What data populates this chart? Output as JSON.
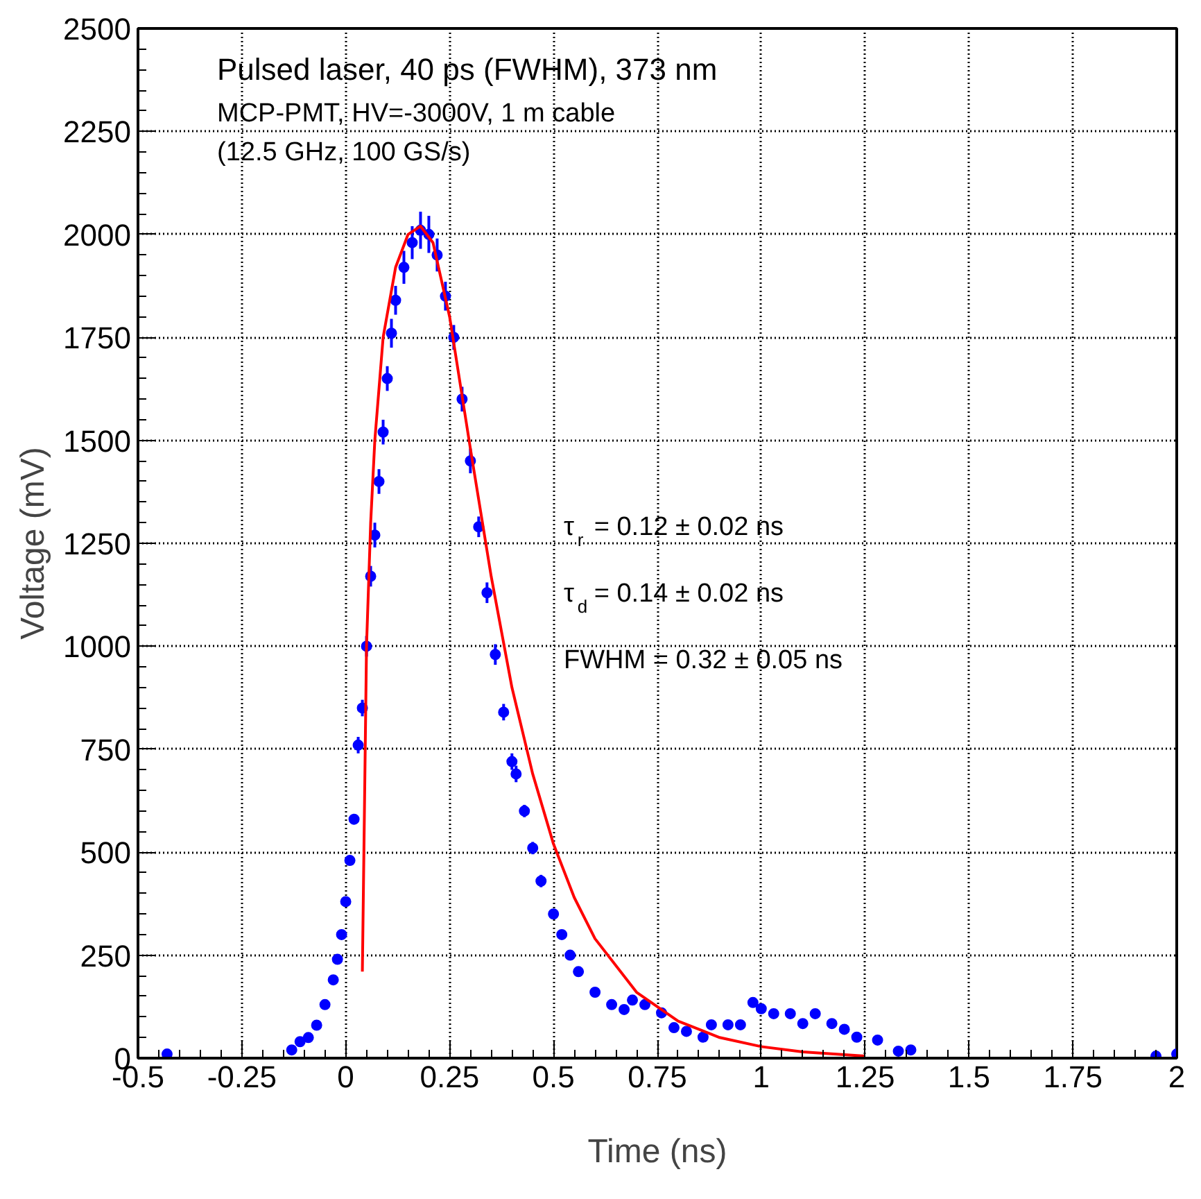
{
  "chart_data": {
    "type": "scatter",
    "title": "Pulsed laser, 40 ps (FWHM), 373 nm",
    "subtitle": "MCP-PMT, HV=-3000V, 1 m cable",
    "xlabel": "Time (ns)",
    "ylabel": "Voltage (mV)",
    "annotations": [
      "(12.5 GHz, 100 GS/s)",
      "τ$_{r}$ = 0.12 ± 0.02 ns",
      "τ$_{d}$ = 0.14 ± 0.02 ns",
      "FWHM = 0.32 ± 0.05 ns"
    ],
    "xlim": [
      -0.5,
      2
    ],
    "ylim": [
      0,
      2500
    ],
    "xticks": [
      -0.5,
      -0.25,
      0,
      0.25,
      0.5,
      0.75,
      1,
      1.25,
      1.5,
      1.75,
      2
    ],
    "yticks": [
      0,
      250,
      500,
      750,
      1000,
      1250,
      1500,
      1750,
      2000,
      2250,
      2500
    ],
    "grid": true,
    "marker": "circle",
    "series": [
      {
        "color": "#0000ff",
        "x": [
          -0.43,
          -0.13,
          -0.11,
          -0.09,
          -0.07,
          -0.05,
          -0.03,
          -0.02,
          -0.01,
          0.0,
          0.01,
          0.02,
          0.03,
          0.04,
          0.05,
          0.06,
          0.07,
          0.08,
          0.09,
          0.1,
          0.11,
          0.12,
          0.14,
          0.16,
          0.18,
          0.2,
          0.22,
          0.24,
          0.26,
          0.28,
          0.3,
          0.32,
          0.34,
          0.36,
          0.38,
          0.4,
          0.41,
          0.43,
          0.45,
          0.47,
          0.5,
          0.52,
          0.54,
          0.56,
          0.6,
          0.64,
          0.67,
          0.69,
          0.72,
          0.76,
          0.79,
          0.82,
          0.86,
          0.88,
          0.92,
          0.95,
          0.98,
          1.0,
          1.03,
          1.07,
          1.1,
          1.13,
          1.17,
          1.2,
          1.23,
          1.28,
          1.33,
          1.36,
          1.95,
          2.0
        ],
        "values": [
          10,
          20,
          40,
          50,
          80,
          130,
          190,
          240,
          300,
          380,
          480,
          580,
          760,
          850,
          1000,
          1170,
          1270,
          1400,
          1520,
          1650,
          1760,
          1840,
          1920,
          1980,
          2010,
          2000,
          1950,
          1850,
          1750,
          1600,
          1450,
          1290,
          1130,
          980,
          840,
          720,
          690,
          600,
          510,
          430,
          350,
          300,
          250,
          210,
          160,
          130,
          118,
          141,
          130,
          110,
          74,
          65,
          51,
          81,
          81,
          81,
          135,
          120,
          108,
          108,
          84,
          108,
          84,
          70,
          51,
          44,
          17,
          20,
          5,
          10
        ],
        "errors": [
          null,
          null,
          null,
          null,
          null,
          null,
          null,
          null,
          null,
          null,
          null,
          null,
          20,
          20,
          25,
          25,
          30,
          30,
          30,
          30,
          35,
          35,
          40,
          40,
          45,
          45,
          40,
          35,
          30,
          30,
          30,
          25,
          25,
          25,
          20,
          20,
          20,
          15,
          15,
          15,
          null,
          null,
          null,
          null,
          null,
          null,
          null,
          null,
          null,
          null,
          null,
          null,
          null,
          null,
          null,
          null,
          null,
          null,
          null,
          null,
          null,
          null,
          null,
          null,
          null,
          null,
          null,
          null,
          null,
          null
        ]
      },
      {
        "type": "line",
        "color": "#ff0000",
        "marker": "none",
        "x": [
          0.04,
          0.045,
          0.05,
          0.06,
          0.07,
          0.09,
          0.12,
          0.15,
          0.18,
          0.21,
          0.25,
          0.3,
          0.35,
          0.4,
          0.45,
          0.5,
          0.55,
          0.6,
          0.7,
          0.8,
          0.9,
          1.0,
          1.1,
          1.25
        ],
        "values": [
          210,
          600,
          1000,
          1300,
          1500,
          1750,
          1920,
          2000,
          2020,
          1980,
          1800,
          1480,
          1170,
          900,
          690,
          520,
          390,
          290,
          160,
          90,
          50,
          28,
          15,
          5
        ]
      }
    ]
  }
}
